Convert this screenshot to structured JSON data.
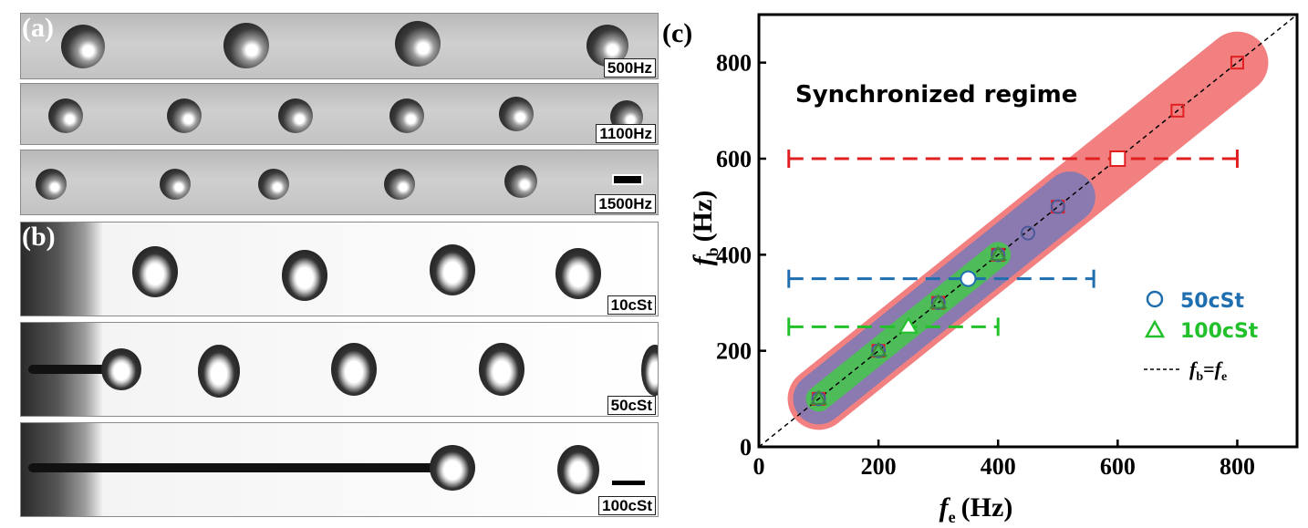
{
  "panel_labels": {
    "a": "(a)",
    "b": "(b)",
    "c": "(c)"
  },
  "panel_a": {
    "frequencies": [
      "500Hz",
      "1100Hz",
      "1500Hz"
    ]
  },
  "panel_b": {
    "viscosities": [
      "10cSt",
      "50cSt",
      "100cSt"
    ]
  },
  "chart_data": {
    "type": "scatter",
    "title": "",
    "annotation": "Synchronized regime",
    "xlabel": {
      "symbol": "f",
      "subscript": "e",
      "unit": "(Hz)"
    },
    "ylabel": {
      "symbol": "f",
      "subscript": "b",
      "unit": "(Hz)"
    },
    "xlim": [
      0,
      900
    ],
    "ylim": [
      0,
      900
    ],
    "xticks": [
      0,
      200,
      400,
      600,
      800
    ],
    "yticks": [
      0,
      200,
      400,
      600,
      800
    ],
    "legend_position": "bottom-right",
    "series": [
      {
        "color": "#e02020",
        "marker": "square",
        "x": [
          100,
          200,
          300,
          400,
          500,
          600,
          700,
          800
        ],
        "y": [
          100,
          200,
          300,
          400,
          500,
          600,
          700,
          800
        ],
        "highlight": {
          "x": 600,
          "y": 600
        },
        "band": {
          "from": 100,
          "to": 800,
          "color": "#f06a6a"
        },
        "range": {
          "y": 600,
          "x_from": 50,
          "x_to": 800
        }
      },
      {
        "name": "50cSt",
        "color": "#1f6fb0",
        "marker": "circle",
        "x": [
          100,
          200,
          300,
          350,
          400,
          450,
          500
        ],
        "y": [
          100,
          200,
          300,
          350,
          400,
          445,
          500
        ],
        "highlight": {
          "x": 350,
          "y": 350
        },
        "band": {
          "from": 100,
          "to": 520,
          "color": "#7a7ab8"
        },
        "range": {
          "y": 350,
          "x_from": 50,
          "x_to": 560
        }
      },
      {
        "name": "100cSt",
        "color": "#22c02a",
        "marker": "triangle",
        "x": [
          100,
          200,
          250,
          300,
          400
        ],
        "y": [
          100,
          200,
          250,
          300,
          400
        ],
        "highlight": {
          "x": 250,
          "y": 250
        },
        "band": {
          "from": 100,
          "to": 400,
          "color": "#44c84a"
        },
        "range": {
          "y": 250,
          "x_from": 50,
          "x_to": 400
        }
      }
    ],
    "reference_line": {
      "label_symbol": "f",
      "label_sub_left": "b",
      "label_eq": "=",
      "label_sub_right": "e",
      "style": "dashed",
      "color": "#000000"
    }
  }
}
